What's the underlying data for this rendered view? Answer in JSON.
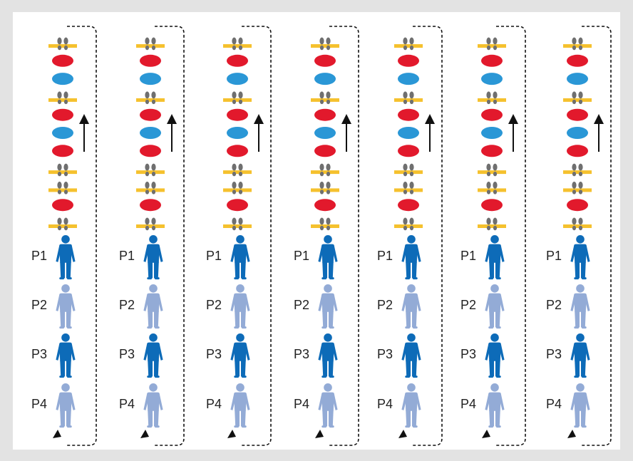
{
  "colors": {
    "background": "#e3e3e3",
    "panel": "#ffffff",
    "red_disc": "#e2192c",
    "blue_disc": "#2a97d6",
    "bar": "#f5c12e",
    "footprint": "#6f6f6f",
    "person_dark": "#0d6bb8",
    "person_light": "#93abd6",
    "arrow": "#111111"
  },
  "pattern": [
    "footprints",
    "red",
    "blue",
    "footprints",
    "red",
    "blue",
    "red",
    "footprints",
    "footprints",
    "red",
    "footprints"
  ],
  "icons": {
    "footprints": "footprints-on-yellow-bar-icon",
    "red": "red-disc-icon",
    "blue": "blue-disc-icon",
    "person": "person-icon",
    "up_arrow": "up-arrow-icon",
    "loop_arrow": "dashed-loop-arrow-icon"
  },
  "lanes": [
    {
      "people": [
        {
          "label": "P1",
          "tone": "dark"
        },
        {
          "label": "P2",
          "tone": "light"
        },
        {
          "label": "P3",
          "tone": "dark"
        },
        {
          "label": "P4",
          "tone": "light"
        }
      ]
    },
    {
      "people": [
        {
          "label": "P1",
          "tone": "dark"
        },
        {
          "label": "P2",
          "tone": "light"
        },
        {
          "label": "P3",
          "tone": "dark"
        },
        {
          "label": "P4",
          "tone": "light"
        }
      ]
    },
    {
      "people": [
        {
          "label": "P1",
          "tone": "dark"
        },
        {
          "label": "P2",
          "tone": "light"
        },
        {
          "label": "P3",
          "tone": "dark"
        },
        {
          "label": "P4",
          "tone": "light"
        }
      ]
    },
    {
      "people": [
        {
          "label": "P1",
          "tone": "dark"
        },
        {
          "label": "P2",
          "tone": "light"
        },
        {
          "label": "P3",
          "tone": "dark"
        },
        {
          "label": "P4",
          "tone": "light"
        }
      ]
    },
    {
      "people": [
        {
          "label": "P1",
          "tone": "dark"
        },
        {
          "label": "P2",
          "tone": "light"
        },
        {
          "label": "P3",
          "tone": "dark"
        },
        {
          "label": "P4",
          "tone": "light"
        }
      ]
    },
    {
      "people": [
        {
          "label": "P1",
          "tone": "dark"
        },
        {
          "label": "P2",
          "tone": "light"
        },
        {
          "label": "P3",
          "tone": "dark"
        },
        {
          "label": "P4",
          "tone": "light"
        }
      ]
    },
    {
      "people": [
        {
          "label": "P1",
          "tone": "dark"
        },
        {
          "label": "P2",
          "tone": "light"
        },
        {
          "label": "P3",
          "tone": "dark"
        },
        {
          "label": "P4",
          "tone": "light"
        }
      ]
    }
  ]
}
